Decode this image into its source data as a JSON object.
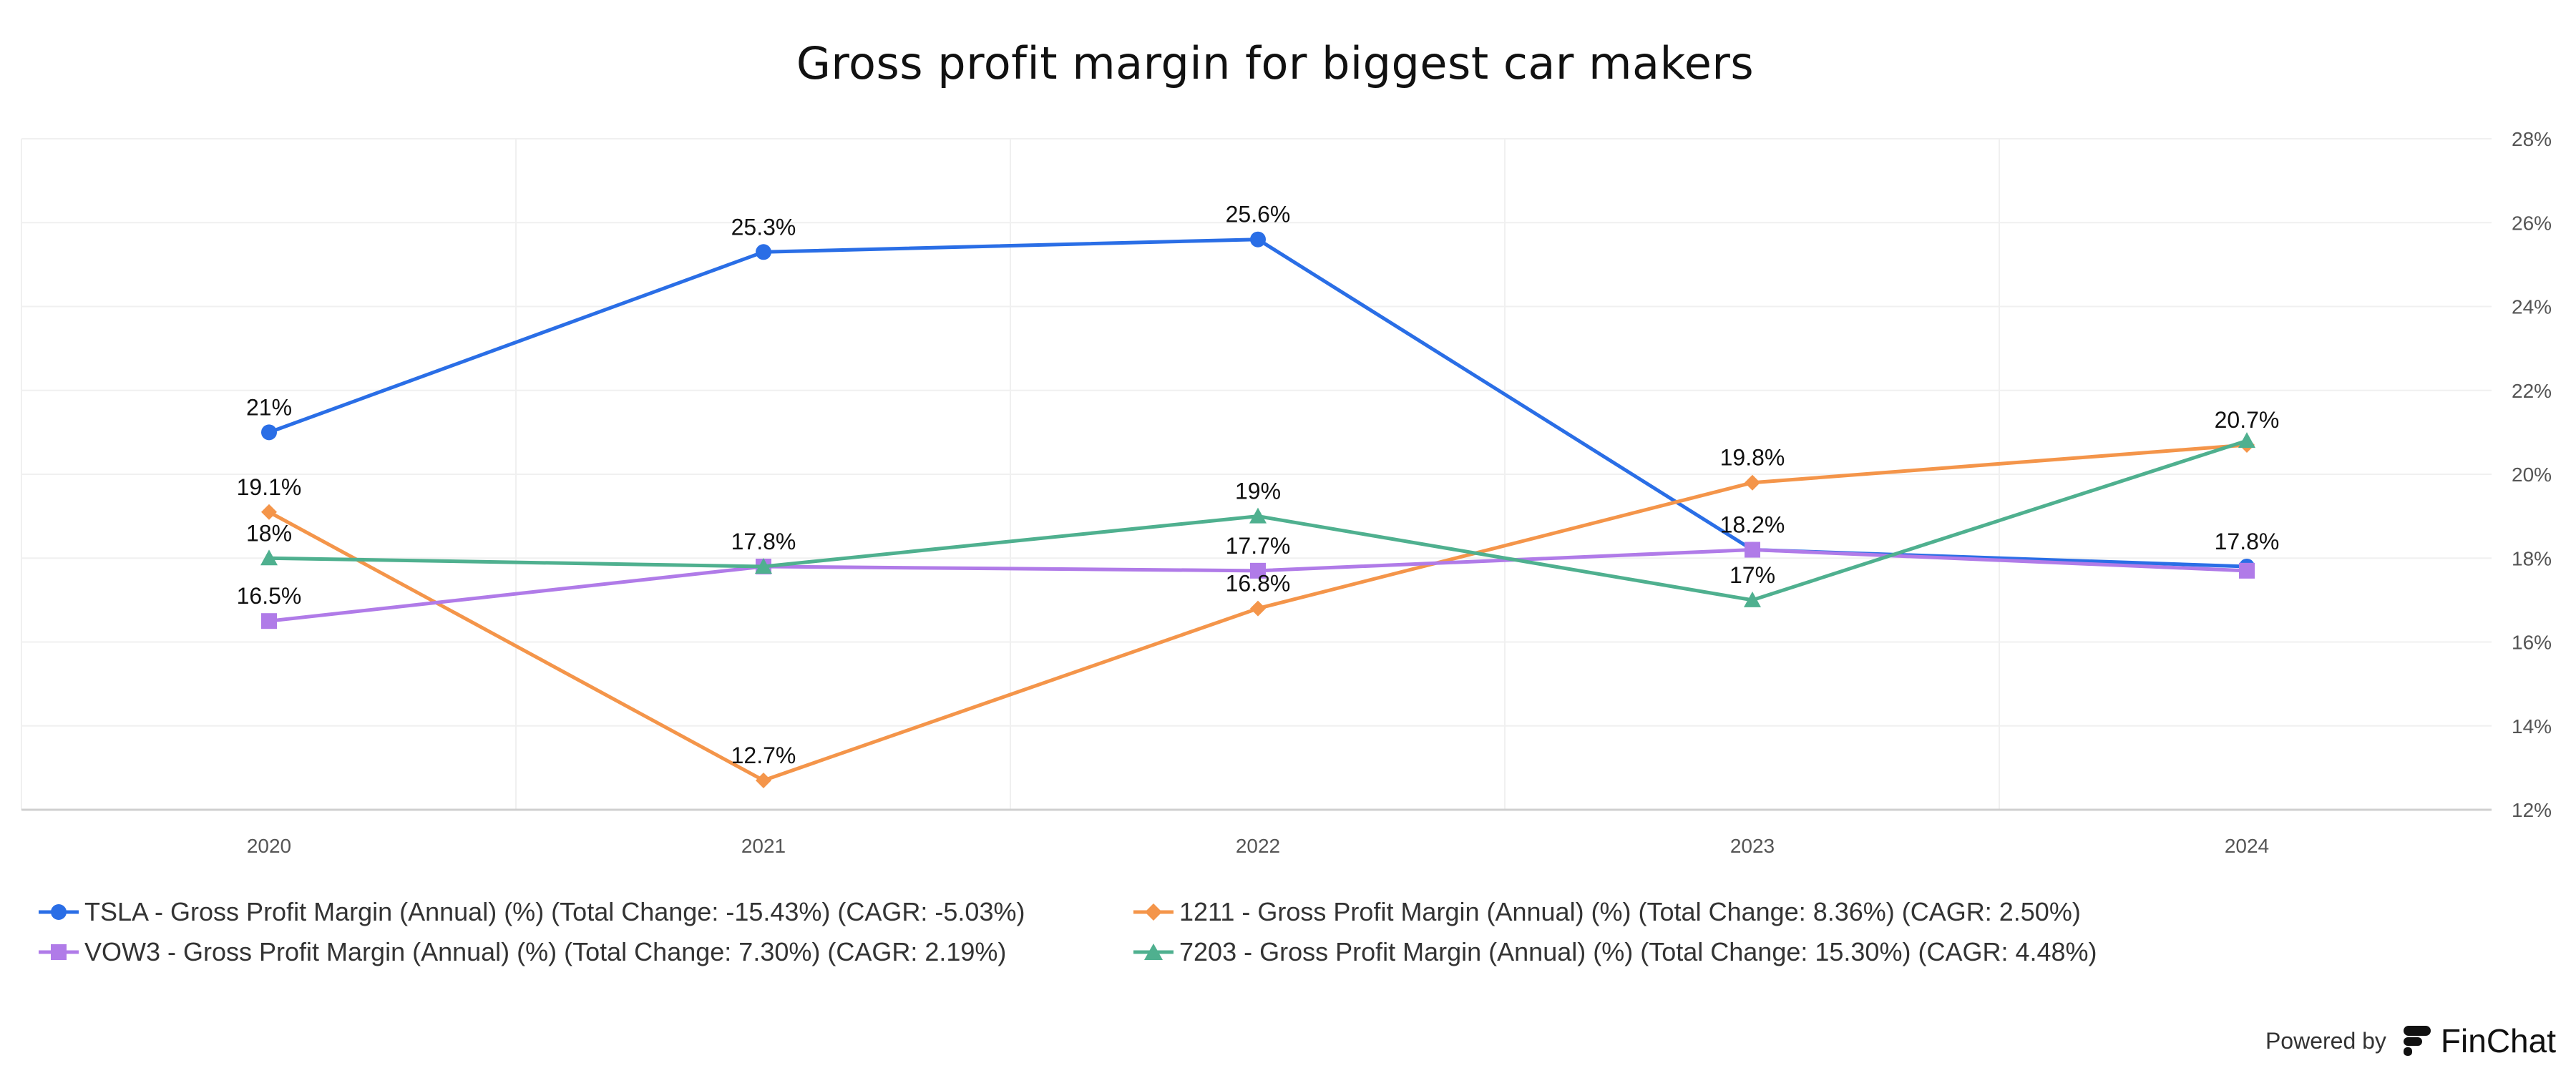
{
  "chart_data": {
    "type": "line",
    "title": "Gross profit margin for biggest car makers",
    "categories": [
      "2020",
      "2021",
      "2022",
      "2023",
      "2024"
    ],
    "ylim": [
      12,
      28
    ],
    "yticks": [
      12,
      14,
      16,
      18,
      20,
      22,
      24,
      26,
      28
    ],
    "ytick_labels": [
      "12%",
      "14%",
      "16%",
      "18%",
      "20%",
      "22%",
      "24%",
      "26%",
      "28%"
    ],
    "y_axis_side": "right",
    "grid": true,
    "legend_position": "bottom",
    "series": [
      {
        "name": "TSLA - Gross Profit Margin (Annual) (%) (Total Change: -15.43%) (CAGR: -5.03%)",
        "values": [
          21,
          25.3,
          25.6,
          18.2,
          17.8
        ],
        "labels": [
          "21%",
          "25.3%",
          "25.6%",
          "",
          "17.8%"
        ],
        "color": "#2a6ee6",
        "marker": "circle"
      },
      {
        "name": "1211 - Gross Profit Margin (Annual) (%) (Total Change: 8.36%) (CAGR: 2.50%)",
        "values": [
          19.1,
          12.7,
          16.8,
          19.8,
          20.7
        ],
        "labels": [
          "19.1%",
          "12.7%",
          "16.8%",
          "19.8%",
          "20.7%"
        ],
        "color": "#f4954a",
        "marker": "diamond"
      },
      {
        "name": "VOW3 - Gross Profit Margin (Annual) (%) (Total Change: 7.30%) (CAGR: 2.19%)",
        "values": [
          16.5,
          17.8,
          17.7,
          18.2,
          17.7
        ],
        "labels": [
          "16.5%",
          "17.8%",
          "17.7%",
          "18.2%",
          ""
        ],
        "color": "#b07be8",
        "marker": "square"
      },
      {
        "name": "7203 - Gross Profit Margin (Annual) (%) (Total Change: 15.30%) (CAGR: 4.48%)",
        "values": [
          18,
          17.8,
          19,
          17,
          20.8
        ],
        "labels": [
          "18%",
          "",
          "19%",
          "17%",
          ""
        ],
        "color": "#4fb08f",
        "marker": "triangle"
      }
    ]
  },
  "footer": {
    "powered_by": "Powered by",
    "brand": "FinChat"
  }
}
